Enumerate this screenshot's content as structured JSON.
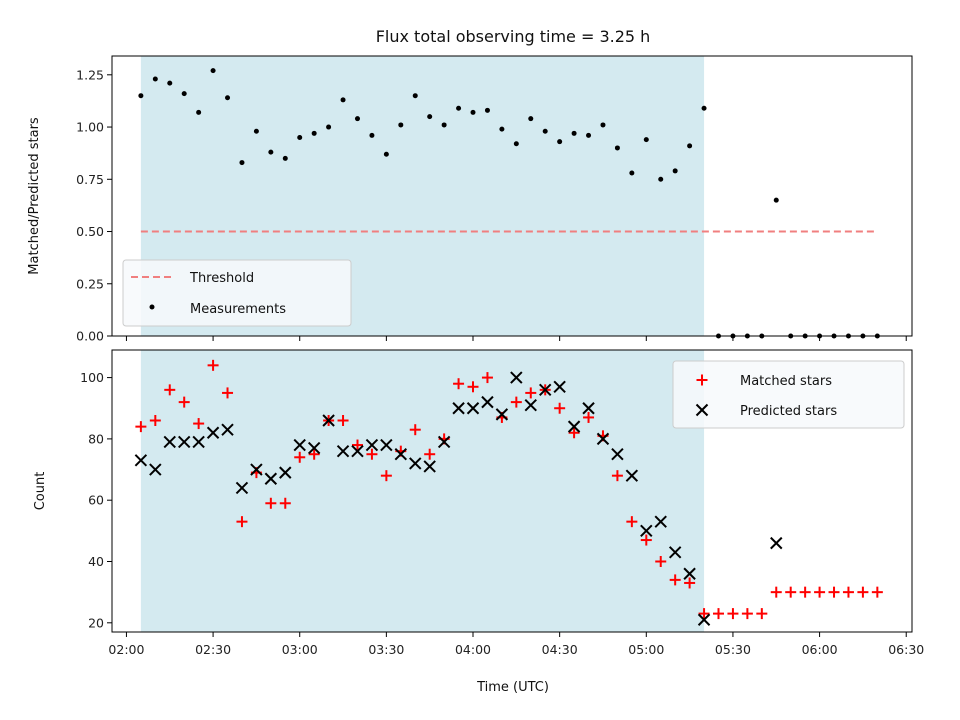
{
  "chart_data": [
    {
      "type": "scatter",
      "title": "Flux total observing time = 3.25 h",
      "xlabel": "",
      "ylabel": "Matched/Predicted stars",
      "ylim": [
        0,
        1.34
      ],
      "yticks": [
        "0.00",
        "0.25",
        "0.50",
        "0.75",
        "1.00",
        "1.25"
      ],
      "ytick_values": [
        0,
        0.25,
        0.5,
        0.75,
        1.0,
        1.25
      ],
      "shaded_region": {
        "start": "02:05",
        "end": "05:20",
        "color": "#d4eaf0"
      },
      "threshold": {
        "name": "Threshold",
        "value": 0.5,
        "start": "02:05",
        "end": "06:20",
        "color": "#f07f7f"
      },
      "series": [
        {
          "name": "Measurements",
          "marker": "dot",
          "color": "#000000",
          "x": [
            "02:05",
            "02:10",
            "02:15",
            "02:20",
            "02:25",
            "02:30",
            "02:35",
            "02:40",
            "02:45",
            "02:50",
            "02:55",
            "03:00",
            "03:05",
            "03:10",
            "03:15",
            "03:20",
            "03:25",
            "03:30",
            "03:35",
            "03:40",
            "03:45",
            "03:50",
            "03:55",
            "04:00",
            "04:05",
            "04:10",
            "04:15",
            "04:20",
            "04:25",
            "04:30",
            "04:35",
            "04:40",
            "04:45",
            "04:50",
            "04:55",
            "05:00",
            "05:05",
            "05:10",
            "05:15",
            "05:20",
            "05:25",
            "05:30",
            "05:35",
            "05:40",
            "05:45",
            "05:50",
            "05:55",
            "06:00",
            "06:05",
            "06:10",
            "06:15",
            "06:20"
          ],
          "y": [
            1.15,
            1.23,
            1.21,
            1.16,
            1.07,
            1.27,
            1.14,
            0.83,
            0.98,
            0.88,
            0.85,
            0.95,
            0.97,
            1.0,
            1.13,
            1.04,
            0.96,
            0.87,
            1.01,
            1.15,
            1.05,
            1.01,
            1.09,
            1.07,
            1.08,
            0.99,
            0.92,
            1.04,
            0.98,
            0.93,
            0.97,
            0.96,
            1.01,
            0.9,
            0.78,
            0.94,
            0.75,
            0.79,
            0.91,
            1.09,
            0.0,
            0.0,
            0.0,
            0.0,
            0.65,
            0.0,
            0.0,
            0.0,
            0.0,
            0.0,
            0.0,
            0.0
          ]
        }
      ],
      "legend": {
        "placement": "lower-left"
      }
    },
    {
      "type": "scatter",
      "title": "",
      "xlabel": "Time (UTC)",
      "ylabel": "Count",
      "ylim": [
        17,
        109
      ],
      "yticks": [
        "20",
        "40",
        "60",
        "80",
        "100"
      ],
      "ytick_values": [
        20,
        40,
        60,
        80,
        100
      ],
      "xticks": [
        "02:00",
        "02:30",
        "03:00",
        "03:30",
        "04:00",
        "04:30",
        "05:00",
        "05:30",
        "06:00",
        "06:30"
      ],
      "xlim": [
        "01:55",
        "06:32"
      ],
      "shaded_region": {
        "start": "02:05",
        "end": "05:20",
        "color": "#d4eaf0"
      },
      "series": [
        {
          "name": "Matched stars",
          "marker": "plus",
          "color": "#ff0000",
          "x": [
            "02:05",
            "02:10",
            "02:15",
            "02:20",
            "02:25",
            "02:30",
            "02:35",
            "02:40",
            "02:45",
            "02:50",
            "02:55",
            "03:00",
            "03:05",
            "03:10",
            "03:15",
            "03:20",
            "03:25",
            "03:30",
            "03:35",
            "03:40",
            "03:45",
            "03:50",
            "03:55",
            "04:00",
            "04:05",
            "04:10",
            "04:15",
            "04:20",
            "04:25",
            "04:30",
            "04:35",
            "04:40",
            "04:45",
            "04:50",
            "04:55",
            "05:00",
            "05:05",
            "05:10",
            "05:15",
            "05:20",
            "05:25",
            "05:30",
            "05:35",
            "05:40",
            "05:45",
            "05:50",
            "05:55",
            "06:00",
            "06:05",
            "06:10",
            "06:15",
            "06:20"
          ],
          "y": [
            84,
            86,
            96,
            92,
            85,
            104,
            95,
            53,
            69,
            59,
            59,
            74,
            75,
            86,
            86,
            78,
            75,
            68,
            76,
            83,
            75,
            80,
            98,
            97,
            100,
            87,
            92,
            95,
            96,
            90,
            82,
            87,
            81,
            68,
            53,
            47,
            40,
            34,
            33,
            23,
            23,
            23,
            23,
            23,
            30,
            30,
            30,
            30,
            30,
            30,
            30,
            30
          ]
        },
        {
          "name": "Predicted stars",
          "marker": "x",
          "color": "#000000",
          "x": [
            "02:05",
            "02:10",
            "02:15",
            "02:20",
            "02:25",
            "02:30",
            "02:35",
            "02:40",
            "02:45",
            "02:50",
            "02:55",
            "03:00",
            "03:05",
            "03:10",
            "03:15",
            "03:20",
            "03:25",
            "03:30",
            "03:35",
            "03:40",
            "03:45",
            "03:50",
            "03:55",
            "04:00",
            "04:05",
            "04:10",
            "04:15",
            "04:20",
            "04:25",
            "04:30",
            "04:35",
            "04:40",
            "04:45",
            "04:50",
            "04:55",
            "05:00",
            "05:05",
            "05:10",
            "05:15",
            "05:20",
            "05:45"
          ],
          "y": [
            73,
            70,
            79,
            79,
            79,
            82,
            83,
            64,
            70,
            67,
            69,
            78,
            77,
            86,
            76,
            76,
            78,
            78,
            75,
            72,
            71,
            79,
            90,
            90,
            92,
            88,
            100,
            91,
            96,
            97,
            84,
            90,
            80,
            75,
            68,
            50,
            53,
            43,
            36,
            21,
            46
          ]
        }
      ],
      "legend": {
        "placement": "upper-right"
      }
    }
  ]
}
